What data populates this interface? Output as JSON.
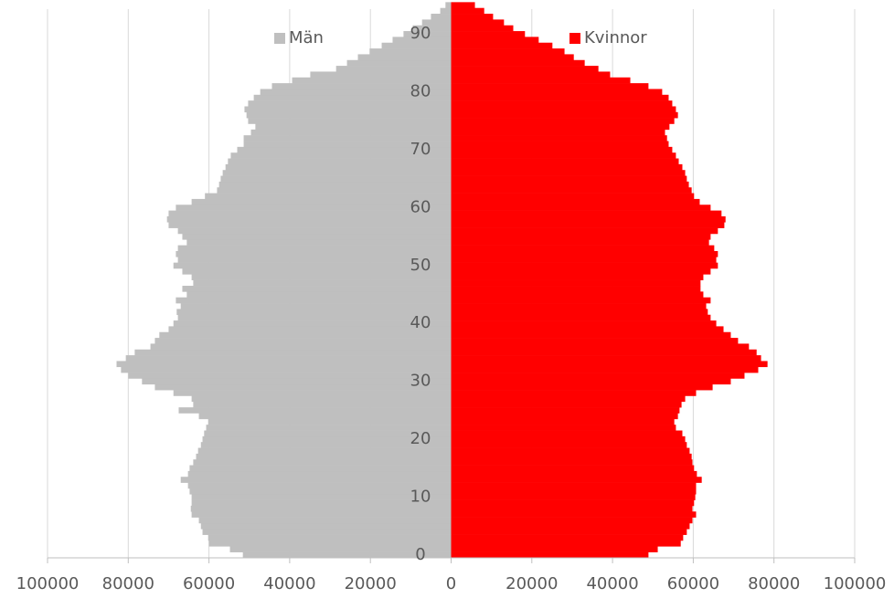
{
  "chart_data": {
    "type": "pyramid",
    "categories": [
      0,
      null,
      null,
      null,
      null,
      null,
      null,
      null,
      null,
      null,
      10,
      null,
      null,
      null,
      null,
      null,
      null,
      null,
      null,
      null,
      20,
      null,
      null,
      null,
      null,
      null,
      null,
      null,
      null,
      null,
      30,
      null,
      null,
      null,
      null,
      null,
      null,
      null,
      null,
      null,
      40,
      null,
      null,
      null,
      null,
      null,
      null,
      null,
      null,
      null,
      50,
      null,
      null,
      null,
      null,
      null,
      null,
      null,
      null,
      null,
      60,
      null,
      null,
      null,
      null,
      null,
      null,
      null,
      null,
      null,
      70,
      null,
      null,
      null,
      null,
      null,
      null,
      null,
      null,
      null,
      80,
      null,
      null,
      null,
      null,
      null,
      null,
      null,
      null,
      null,
      90,
      null,
      null,
      null,
      null,
      null
    ],
    "series": [
      {
        "name": "Män",
        "color": "#bfbfbf",
        "values": [
          -51600,
          -54800,
          -60000,
          -60200,
          -61600,
          -62000,
          -62500,
          -64300,
          -64500,
          -64300,
          -64300,
          -64800,
          -65200,
          -67000,
          -65200,
          -64800,
          -63900,
          -63200,
          -62700,
          -62000,
          -61600,
          -61200,
          -60700,
          -60200,
          -62500,
          -67500,
          -63900,
          -64300,
          -68800,
          -73400,
          -76600,
          -80000,
          -81800,
          -82900,
          -80600,
          -78400,
          -74500,
          -73400,
          -72300,
          -70000,
          -68800,
          -67700,
          -68000,
          -67000,
          -68200,
          -65500,
          -66600,
          -63900,
          -64300,
          -66600,
          -68800,
          -67700,
          -68200,
          -67700,
          -65500,
          -66600,
          -67700,
          -70000,
          -70400,
          -70000,
          -68200,
          -64300,
          -61000,
          -58000,
          -57500,
          -57100,
          -56600,
          -55900,
          -55300,
          -54600,
          -53000,
          -51400,
          -51400,
          -49600,
          -48500,
          -50300,
          -50700,
          -51200,
          -50300,
          -48900,
          -47300,
          -44400,
          -39400,
          -34900,
          -28500,
          -25800,
          -23100,
          -20200,
          -17200,
          -14500,
          -11800,
          -9500,
          -7200,
          -5000,
          -2700,
          -1400
        ]
      },
      {
        "name": "Kvinnor",
        "color": "#ff0000",
        "values": [
          48900,
          51200,
          56900,
          57500,
          58400,
          59100,
          59800,
          60700,
          59800,
          60200,
          60500,
          60700,
          60700,
          62100,
          60900,
          60200,
          59800,
          59600,
          59100,
          58400,
          58000,
          57300,
          55700,
          55300,
          56200,
          56600,
          57100,
          58000,
          60700,
          64800,
          69300,
          72700,
          76100,
          78400,
          76800,
          75700,
          73800,
          71100,
          69300,
          67500,
          65700,
          64300,
          63600,
          63200,
          64300,
          62500,
          61800,
          61800,
          62500,
          64300,
          66100,
          65700,
          66100,
          65200,
          63900,
          64300,
          66100,
          67700,
          68000,
          67000,
          64300,
          61600,
          60200,
          59600,
          58900,
          58400,
          58000,
          57300,
          56400,
          55700,
          54800,
          53900,
          53500,
          53000,
          54100,
          55300,
          56200,
          55700,
          54800,
          53900,
          52300,
          48900,
          44400,
          39400,
          36500,
          33100,
          30400,
          28100,
          25100,
          21700,
          18300,
          15400,
          13100,
          10400,
          8200,
          5900
        ]
      }
    ],
    "xlim": [
      -100000,
      100000
    ],
    "xticks": [
      {
        "value": -100000,
        "label": "100000"
      },
      {
        "value": -80000,
        "label": "80000"
      },
      {
        "value": -60000,
        "label": "60000"
      },
      {
        "value": -40000,
        "label": "40000"
      },
      {
        "value": -20000,
        "label": "20000"
      },
      0,
      20000,
      40000,
      60000,
      80000,
      100000
    ],
    "grid": true,
    "legend": "top"
  }
}
